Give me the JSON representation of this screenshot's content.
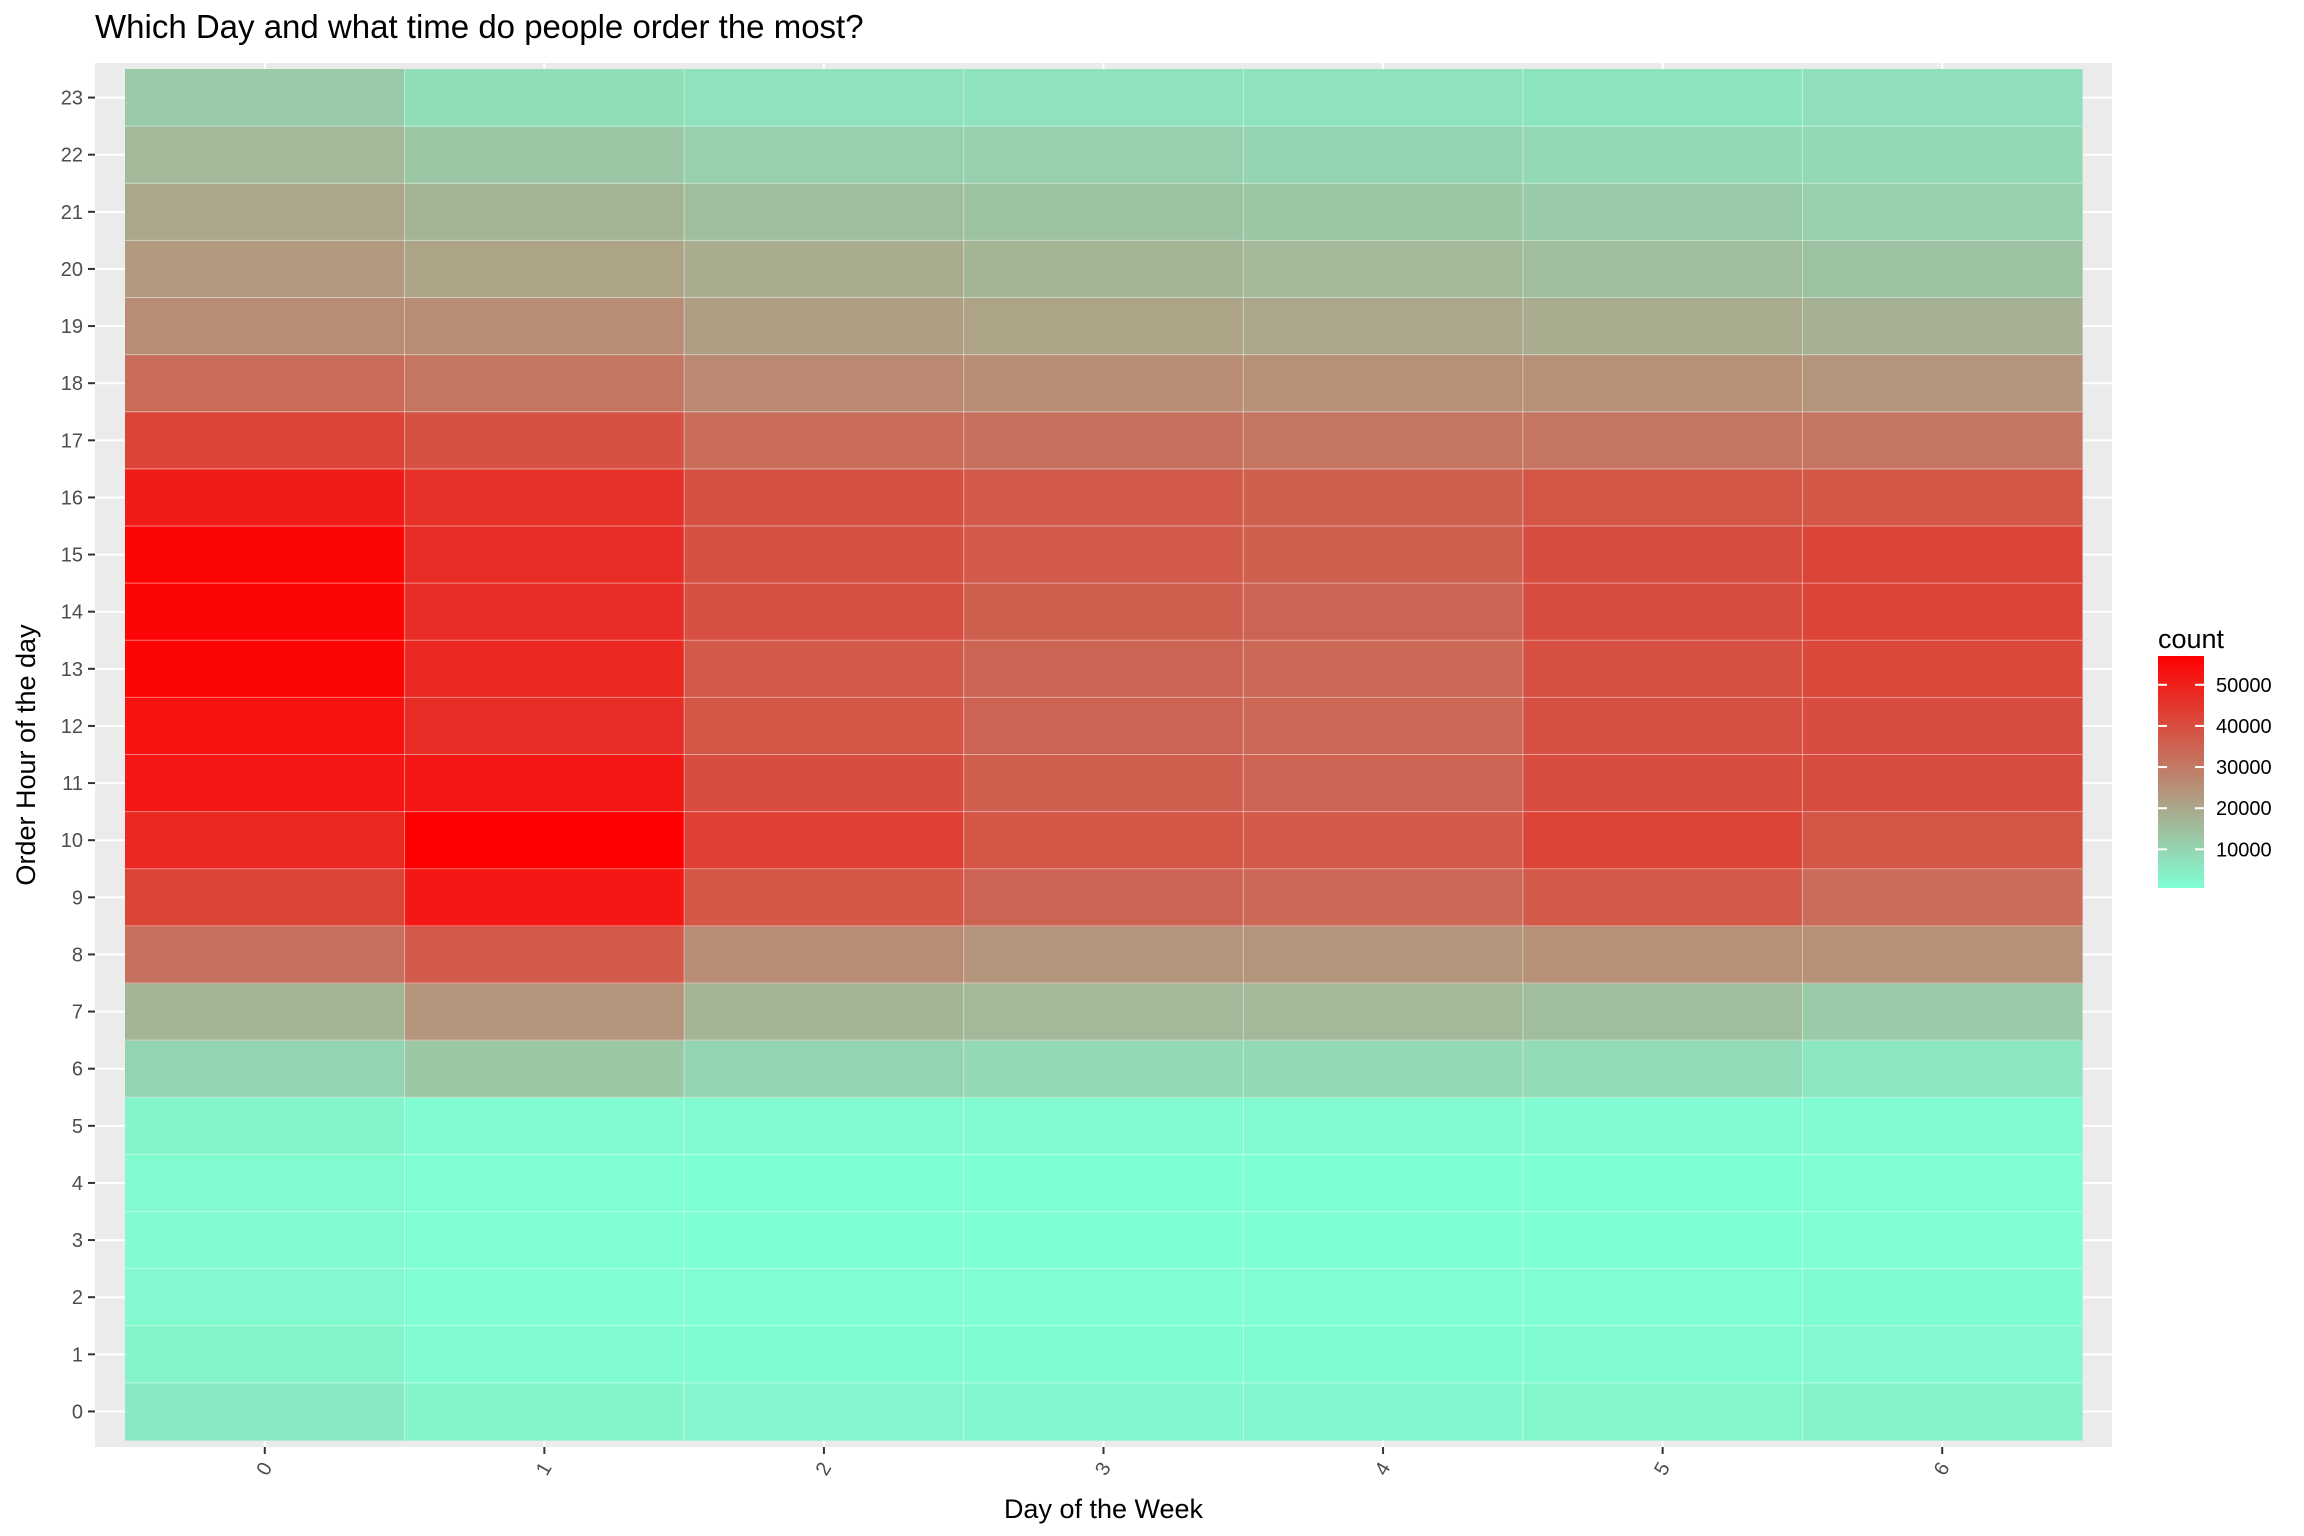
{
  "chart_data": {
    "type": "heatmap",
    "title": "Which Day and what time do people order the most?",
    "xlabel": "Day of the Week",
    "ylabel": "Order Hour of the day",
    "x_categories": [
      "0",
      "1",
      "2",
      "3",
      "4",
      "5",
      "6"
    ],
    "y_categories": [
      "0",
      "1",
      "2",
      "3",
      "4",
      "5",
      "6",
      "7",
      "8",
      "9",
      "10",
      "11",
      "12",
      "13",
      "14",
      "15",
      "16",
      "17",
      "18",
      "19",
      "20",
      "21",
      "22",
      "23"
    ],
    "values_by_day": [
      [
        5500,
        3000,
        2000,
        1500,
        1700,
        3000,
        10000,
        17000,
        32000,
        42000,
        48000,
        52000,
        53000,
        56000,
        56000,
        56000,
        51000,
        42000,
        33000,
        26000,
        23000,
        20000,
        16000,
        12000
      ],
      [
        3000,
        1500,
        1000,
        800,
        800,
        1500,
        13000,
        24000,
        37000,
        52000,
        57000,
        52000,
        47000,
        48000,
        47000,
        47000,
        46000,
        39000,
        31000,
        26000,
        21000,
        17000,
        13000,
        8000
      ],
      [
        2500,
        1200,
        800,
        600,
        700,
        1700,
        10000,
        17000,
        26000,
        38000,
        43000,
        40000,
        38000,
        37000,
        39000,
        39000,
        39000,
        33000,
        27000,
        22000,
        19000,
        15000,
        11000,
        7000
      ],
      [
        2400,
        1200,
        800,
        600,
        700,
        1600,
        9000,
        16000,
        24000,
        35000,
        38000,
        36000,
        35000,
        35000,
        36000,
        37000,
        37000,
        32000,
        26000,
        21000,
        17000,
        14000,
        11000,
        7000
      ],
      [
        2400,
        1200,
        800,
        600,
        700,
        1600,
        9000,
        16000,
        24000,
        34000,
        37000,
        35000,
        34000,
        34000,
        35000,
        36000,
        36000,
        31000,
        25000,
        20000,
        16000,
        13000,
        10000,
        7000
      ],
      [
        2600,
        1300,
        800,
        600,
        700,
        1500,
        8500,
        15000,
        25000,
        37000,
        42000,
        40000,
        39000,
        39000,
        40000,
        40000,
        38000,
        31000,
        25000,
        19000,
        15000,
        12000,
        9000,
        6500
      ],
      [
        3500,
        2000,
        1200,
        800,
        800,
        1400,
        6000,
        12000,
        25000,
        33000,
        38000,
        40000,
        40000,
        41000,
        42000,
        42000,
        38000,
        31000,
        24000,
        18000,
        14000,
        11000,
        9000,
        7500
      ]
    ],
    "color_scale": {
      "low": "#7fffd4",
      "high": "#ff0000",
      "min": 600,
      "max": 57000
    },
    "legend": {
      "title": "count",
      "position": "right",
      "breaks": [
        10000,
        20000,
        30000,
        40000,
        50000
      ],
      "labels": [
        "10000",
        "20000",
        "30000",
        "40000",
        "50000"
      ]
    },
    "grid": true,
    "panel_background": "#ebebeb"
  }
}
